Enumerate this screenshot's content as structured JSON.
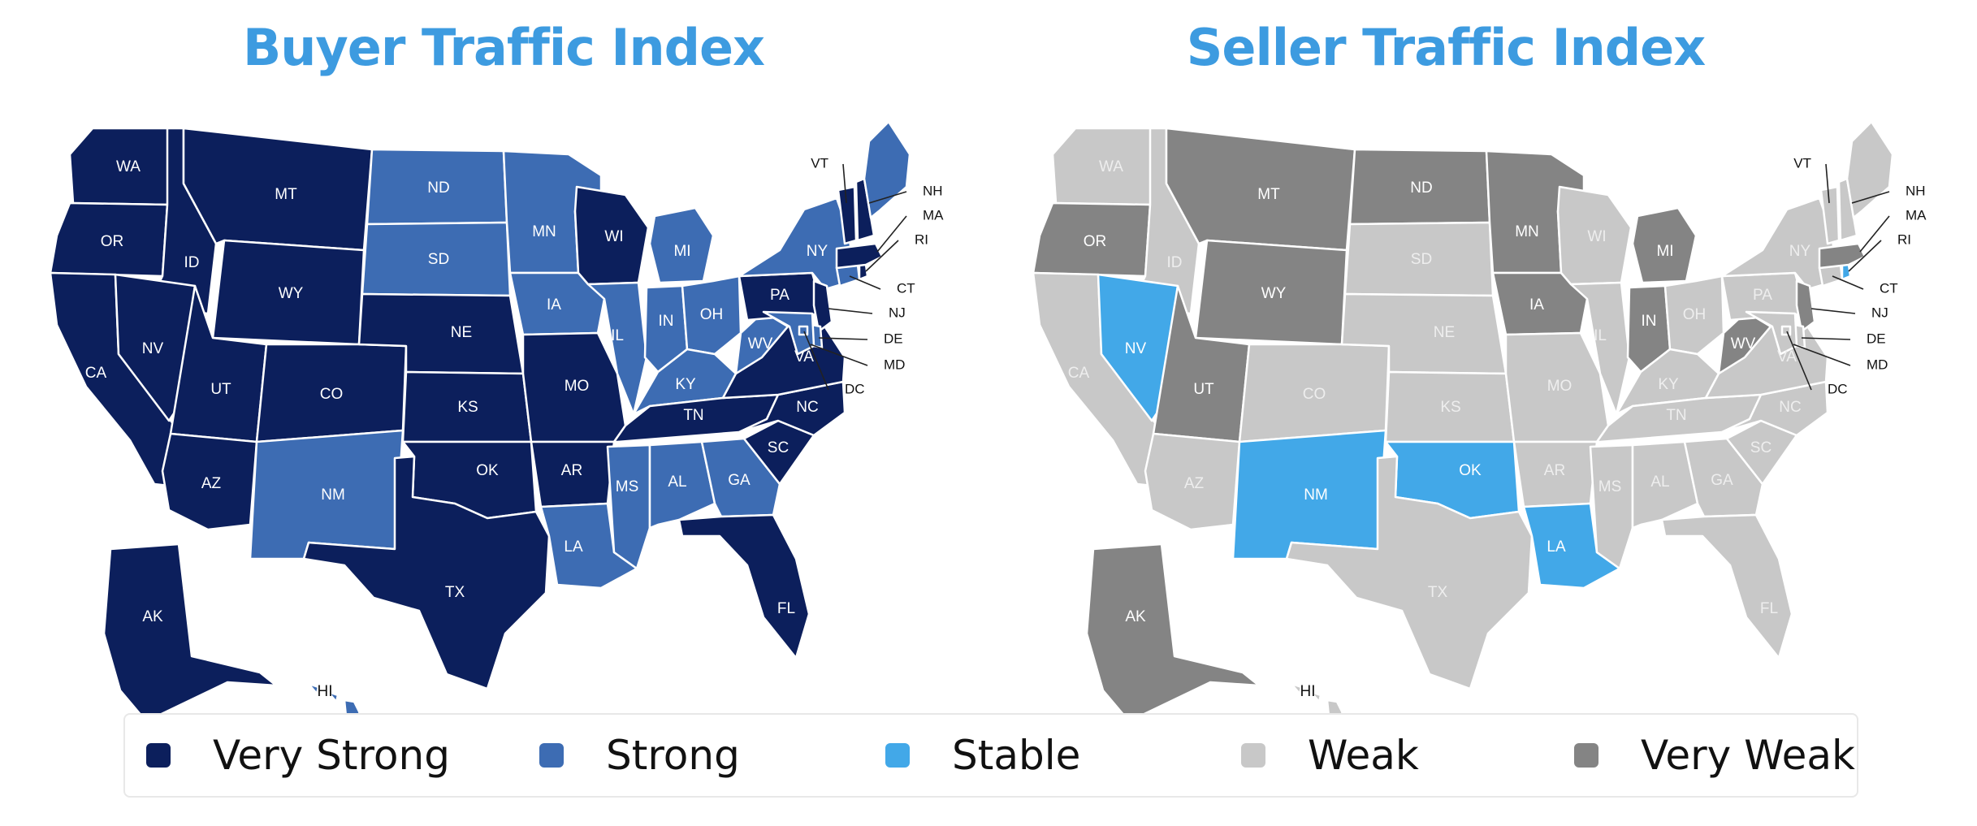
{
  "maps": {
    "buyer": {
      "title": "Buyer Traffic Index"
    },
    "seller": {
      "title": "Seller Traffic Index"
    }
  },
  "legend": [
    {
      "label": "Very Strong",
      "color": "#0c1f5c"
    },
    {
      "label": "Strong",
      "color": "#3d6cb3"
    },
    {
      "label": "Stable",
      "color": "#42a8e8"
    },
    {
      "label": "Weak",
      "color": "#c8c8c8"
    },
    {
      "label": "Very Weak",
      "color": "#848484"
    }
  ],
  "state_ratings": {
    "WA": {
      "buyer": "Very Strong",
      "seller": "Weak"
    },
    "OR": {
      "buyer": "Very Strong",
      "seller": "Very Weak"
    },
    "CA": {
      "buyer": "Very Strong",
      "seller": "Weak"
    },
    "ID": {
      "buyer": "Very Strong",
      "seller": "Weak"
    },
    "NV": {
      "buyer": "Very Strong",
      "seller": "Stable"
    },
    "MT": {
      "buyer": "Very Strong",
      "seller": "Very Weak"
    },
    "WY": {
      "buyer": "Very Strong",
      "seller": "Very Weak"
    },
    "UT": {
      "buyer": "Very Strong",
      "seller": "Very Weak"
    },
    "AZ": {
      "buyer": "Very Strong",
      "seller": "Weak"
    },
    "CO": {
      "buyer": "Very Strong",
      "seller": "Weak"
    },
    "NM": {
      "buyer": "Strong",
      "seller": "Stable"
    },
    "ND": {
      "buyer": "Strong",
      "seller": "Very Weak"
    },
    "SD": {
      "buyer": "Strong",
      "seller": "Weak"
    },
    "NE": {
      "buyer": "Very Strong",
      "seller": "Weak"
    },
    "KS": {
      "buyer": "Very Strong",
      "seller": "Weak"
    },
    "OK": {
      "buyer": "Very Strong",
      "seller": "Stable"
    },
    "TX": {
      "buyer": "Very Strong",
      "seller": "Weak"
    },
    "MN": {
      "buyer": "Strong",
      "seller": "Very Weak"
    },
    "IA": {
      "buyer": "Strong",
      "seller": "Very Weak"
    },
    "MO": {
      "buyer": "Very Strong",
      "seller": "Weak"
    },
    "AR": {
      "buyer": "Very Strong",
      "seller": "Weak"
    },
    "LA": {
      "buyer": "Strong",
      "seller": "Stable"
    },
    "WI": {
      "buyer": "Very Strong",
      "seller": "Weak"
    },
    "IL": {
      "buyer": "Strong",
      "seller": "Weak"
    },
    "MI": {
      "buyer": "Strong",
      "seller": "Very Weak"
    },
    "IN": {
      "buyer": "Strong",
      "seller": "Very Weak"
    },
    "OH": {
      "buyer": "Strong",
      "seller": "Weak"
    },
    "KY": {
      "buyer": "Strong",
      "seller": "Weak"
    },
    "TN": {
      "buyer": "Very Strong",
      "seller": "Weak"
    },
    "MS": {
      "buyer": "Strong",
      "seller": "Weak"
    },
    "AL": {
      "buyer": "Strong",
      "seller": "Weak"
    },
    "GA": {
      "buyer": "Strong",
      "seller": "Weak"
    },
    "FL": {
      "buyer": "Very Strong",
      "seller": "Weak"
    },
    "SC": {
      "buyer": "Very Strong",
      "seller": "Weak"
    },
    "NC": {
      "buyer": "Very Strong",
      "seller": "Weak"
    },
    "VA": {
      "buyer": "Very Strong",
      "seller": "Weak"
    },
    "WV": {
      "buyer": "Strong",
      "seller": "Very Weak"
    },
    "PA": {
      "buyer": "Very Strong",
      "seller": "Weak"
    },
    "NY": {
      "buyer": "Strong",
      "seller": "Weak"
    },
    "NJ": {
      "buyer": "Very Strong",
      "seller": "Very Weak"
    },
    "DE": {
      "buyer": "Strong",
      "seller": "Weak"
    },
    "MD": {
      "buyer": "Strong",
      "seller": "Weak"
    },
    "DC": {
      "buyer": "Strong",
      "seller": "Weak"
    },
    "CT": {
      "buyer": "Strong",
      "seller": "Weak"
    },
    "RI": {
      "buyer": "Very Strong",
      "seller": "Stable"
    },
    "MA": {
      "buyer": "Very Strong",
      "seller": "Very Weak"
    },
    "VT": {
      "buyer": "Very Strong",
      "seller": "Weak"
    },
    "NH": {
      "buyer": "Very Strong",
      "seller": "Weak"
    },
    "ME": {
      "buyer": "Strong",
      "seller": "Weak"
    },
    "AK": {
      "buyer": "Very Strong",
      "seller": "Very Weak"
    },
    "HI": {
      "buyer": "Strong",
      "seller": "Weak"
    }
  }
}
